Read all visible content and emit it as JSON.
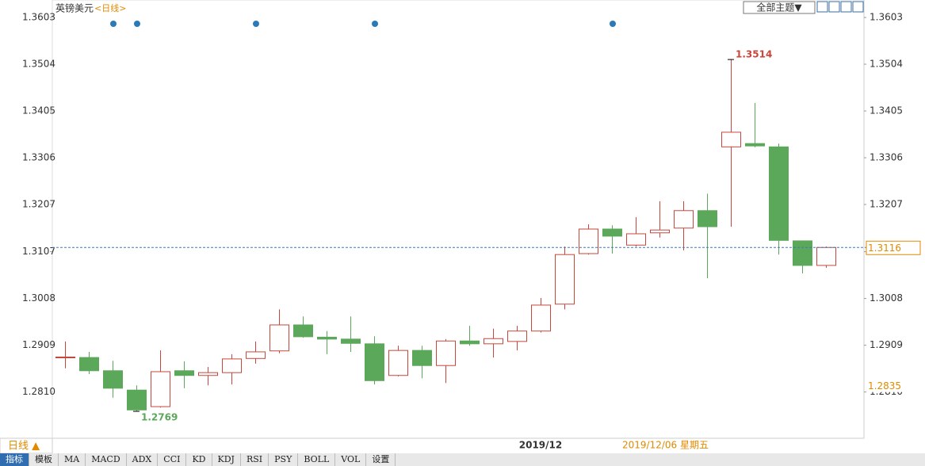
{
  "header": {
    "symbol": "英镑美元",
    "period": "<日线>",
    "theme_button": "全部主题▼"
  },
  "chart_data": {
    "type": "candlestick",
    "categories": [
      null,
      null,
      null,
      null,
      null,
      null,
      null,
      null,
      null,
      null,
      null,
      null,
      null,
      null,
      null,
      null,
      null,
      null,
      null,
      null,
      "2019/12",
      null,
      null,
      null,
      null,
      null,
      null,
      null,
      null,
      null,
      null,
      null,
      null
    ],
    "open": [
      1.2883,
      1.2883,
      1.2855,
      1.2814,
      1.2779,
      1.2855,
      1.2845,
      1.2851,
      1.2881,
      1.2897,
      1.2952,
      1.2926,
      1.2922,
      1.2912,
      1.2845,
      1.2898,
      1.2866,
      1.2918,
      1.2912,
      1.2917,
      1.2939,
      1.2996,
      1.3103,
      1.3155,
      1.3121,
      1.3147,
      1.3157,
      1.3194,
      1.3329,
      1.3336,
      1.3329,
      1.313,
      1.3078
    ],
    "high": [
      1.2917,
      1.2895,
      1.2876,
      1.2824,
      1.2898,
      1.2875,
      1.2863,
      1.289,
      1.2917,
      1.2985,
      1.297,
      1.2939,
      1.297,
      1.2928,
      1.2908,
      1.2908,
      1.2922,
      1.295,
      1.2944,
      1.295,
      1.3009,
      1.3118,
      1.3165,
      1.3163,
      1.318,
      1.3214,
      1.3214,
      1.323,
      1.3514,
      1.3422,
      1.3336,
      1.313,
      1.3118
    ],
    "low": [
      1.286,
      1.2848,
      1.2798,
      1.2769,
      1.2777,
      1.2818,
      1.2824,
      1.2826,
      1.287,
      1.2892,
      1.2925,
      1.289,
      1.2895,
      1.2826,
      1.2843,
      1.2839,
      1.2829,
      1.2908,
      1.2883,
      1.2898,
      1.2936,
      1.2985,
      1.3101,
      1.3103,
      1.3118,
      1.3137,
      1.311,
      1.3051,
      1.316,
      1.3328,
      1.3101,
      1.3061,
      1.3073
    ],
    "close": [
      1.2884,
      1.2855,
      1.2818,
      1.2772,
      1.2853,
      1.2845,
      1.2851,
      1.288,
      1.2895,
      1.2952,
      1.2927,
      1.2922,
      1.2913,
      1.2834,
      1.2898,
      1.2866,
      1.2918,
      1.2912,
      1.2923,
      1.2939,
      1.2994,
      1.3101,
      1.3155,
      1.314,
      1.3145,
      1.3153,
      1.3194,
      1.316,
      1.336,
      1.3331,
      1.3131,
      1.3078,
      1.3116
    ],
    "up_color": "#c8463c",
    "down_color": "#5ba85b",
    "ylim": [
      1.2712,
      1.364
    ],
    "yticks": [
      {
        "value": 1.281,
        "label": "1.2810"
      },
      1.2909,
      1.3008,
      1.3107,
      1.3207,
      1.3306,
      1.3405,
      1.3504,
      1.3603
    ],
    "last_price_line": true,
    "marker_price": 1.2835,
    "cursor_date": "2019/12/06 星期五"
  },
  "footer": {
    "period_tab": "日线 ▲",
    "tabs": [
      "指标",
      "模板",
      "MA",
      "MACD",
      "ADX",
      "CCI",
      "KD",
      "KDJ",
      "RSI",
      "PSY",
      "BOLL",
      "VOL",
      "设置"
    ]
  }
}
